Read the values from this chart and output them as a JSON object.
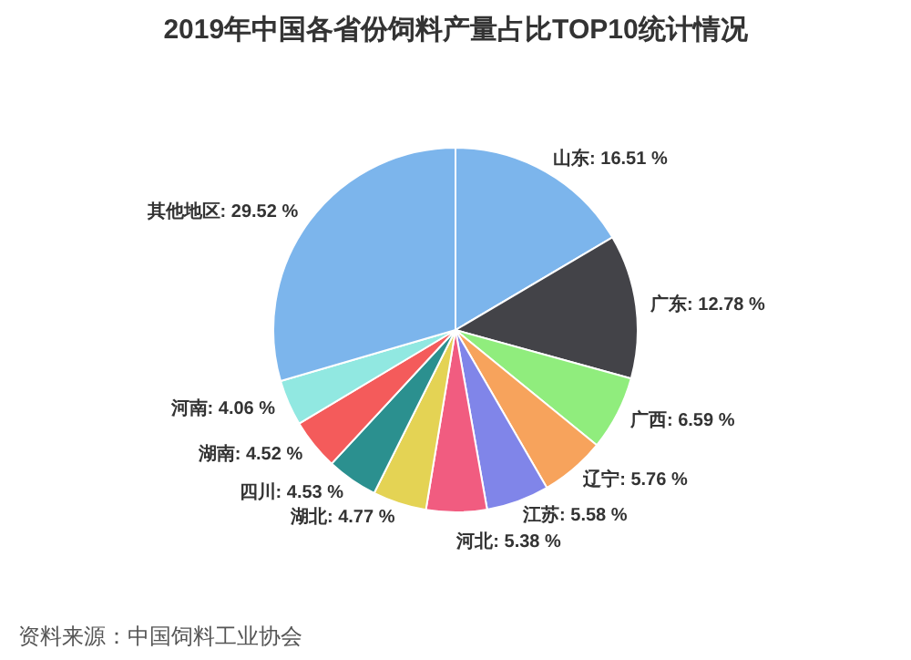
{
  "chart_data": {
    "type": "pie",
    "title": "2019年中国各省份饲料产量占比TOP10统计情况",
    "categories": [
      "山东",
      "广东",
      "广西",
      "辽宁",
      "江苏",
      "河北",
      "湖北",
      "四川",
      "湖南",
      "河南",
      "其他地区"
    ],
    "values": [
      16.51,
      12.78,
      6.59,
      5.76,
      5.58,
      5.38,
      4.77,
      4.53,
      4.52,
      4.06,
      29.52
    ],
    "value_labels": [
      "16.51 %",
      "12.78 %",
      "6.59 %",
      "5.76 %",
      "5.58 %",
      "5.38 %",
      "4.77 %",
      "4.53 %",
      "4.52 %",
      "4.06 %",
      "29.52 %"
    ],
    "colors": [
      "#7cb5ec",
      "#434348",
      "#90ed7d",
      "#f7a35c",
      "#8085e9",
      "#f15c80",
      "#e4d354",
      "#2b908f",
      "#f45b5b",
      "#91e8e1",
      "#7cb5ec"
    ],
    "annotations": [
      "资料来源：中国饲料工业协会"
    ]
  }
}
